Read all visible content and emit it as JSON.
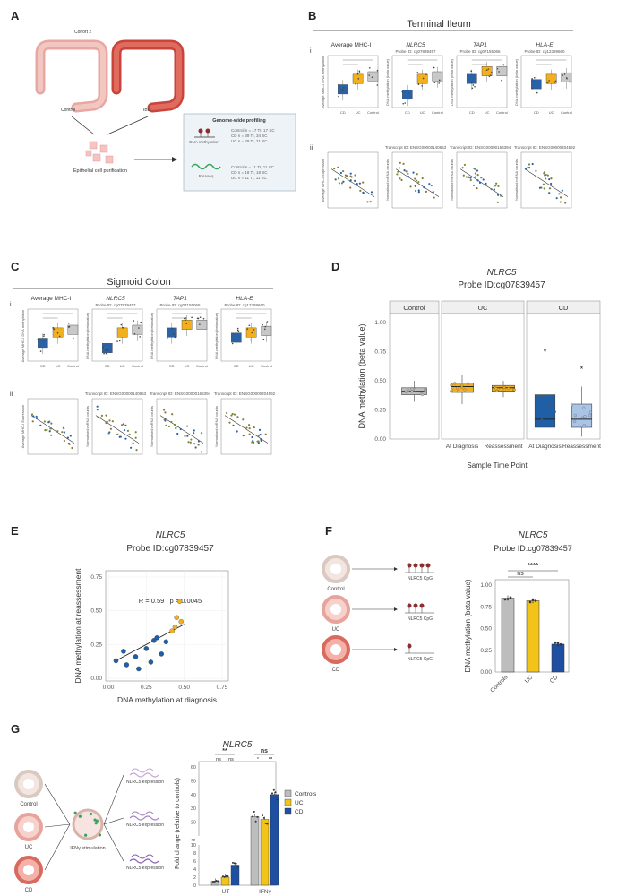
{
  "panels": {
    "A": {
      "label": "A",
      "cohort": "Cohort 2",
      "groups": [
        "Control",
        "IBD"
      ],
      "purification": "Epithelial cell purification",
      "profiling_title": "Genome-wide profiling",
      "methylation_label": "DNA methylation",
      "rnaseq_label": "RNAseq",
      "methylation_counts": [
        "Control n = 17 TI, 17 SC",
        "CD n = 39 TI, 34 SC",
        "UC n = 29 TI, 21 SC"
      ],
      "rnaseq_counts": [
        "Control n = 11 TI, 11 SC",
        "CD n = 18 TI, 18 SC",
        "UC n = 11 TI, 11 SC"
      ]
    },
    "B": {
      "label": "B",
      "title": "Terminal Ileum",
      "row_i": "i",
      "row_ii": "ii",
      "genes": [
        {
          "name": "Average MHC-I",
          "probe": "",
          "transcript": ""
        },
        {
          "name": "NLRC5",
          "probe": "Probe ID: cg07839457",
          "transcript": "Transcript ID: ENSG00000140853"
        },
        {
          "name": "TAP1",
          "probe": "Probe ID: cg07155066",
          "transcript": "Transcript ID: ENSG00000168394"
        },
        {
          "name": "HLA-E",
          "probe": "Probe ID: cg12389660",
          "transcript": "Transcript ID: ENSG00000204592"
        }
      ],
      "ylabels_i": [
        "Average MHC-I DNA methylation",
        "DNA methylation (beta value)",
        "DNA methylation (beta value)",
        "DNA methylation (beta value)"
      ],
      "ylabels_ii": [
        "Average MHC-I Expression",
        "Normalised mRNA counts",
        "Normalised mRNA counts",
        "Normalised mRNA counts"
      ],
      "xcats": [
        "CD",
        "UC",
        "Control"
      ]
    },
    "C": {
      "label": "C",
      "title": "Sigmoid Colon",
      "row_i": "i",
      "row_ii": "ii",
      "genes": [
        {
          "name": "Average MHC-I",
          "probe": "",
          "transcript": ""
        },
        {
          "name": "NLRC5",
          "probe": "Probe ID: cg07839457",
          "transcript": "Transcript ID: ENSG00000140853"
        },
        {
          "name": "TAP1",
          "probe": "Probe ID: cg07155066",
          "transcript": "Transcript ID: ENSG00000168394"
        },
        {
          "name": "HLA-E",
          "probe": "Probe ID: cg12389660",
          "transcript": "Transcript ID: ENSG00000204592"
        }
      ],
      "ylabels_i": [
        "Average MHC-I DNA methylation",
        "DNA methylation (beta value)",
        "DNA methylation (beta value)",
        "DNA methylation (beta value)"
      ],
      "ylabels_ii": [
        "Average MHC-I Expression",
        "Normalised mRNA counts",
        "Normalised mRNA counts",
        "Normalised mRNA counts"
      ],
      "xcats": [
        "CD",
        "UC",
        "Control"
      ]
    },
    "D": {
      "label": "D"
    },
    "E": {
      "label": "E"
    },
    "F": {
      "label": "F",
      "schematic": [
        "Control",
        "UC",
        "CD"
      ],
      "cpg_label": "NLRC5 CpG"
    },
    "G": {
      "label": "G",
      "schematic": [
        "Control",
        "UC",
        "CD"
      ],
      "stimulation": "IFNγ stimulation",
      "expression_label": "NLRC5 expression"
    }
  },
  "chart_data": [
    {
      "id": "D",
      "type": "box",
      "title": "NLRC5",
      "subtitle": "Probe ID:cg07839457",
      "xlabel": "Sample Time Point",
      "ylabel": "DNA methylation (beta value)",
      "ylim": [
        0,
        1.0
      ],
      "yticks": [
        "0.00",
        "0.25",
        "0.50",
        "0.75",
        "1.00"
      ],
      "facets": [
        "Control",
        "UC",
        "CD"
      ],
      "groups": [
        {
          "facet": "Control",
          "label": "",
          "q1": 0.38,
          "median": 0.41,
          "q3": 0.44,
          "min": 0.32,
          "max": 0.5,
          "color": "#bdbdbd"
        },
        {
          "facet": "UC",
          "label": "At Diagnosis",
          "q1": 0.4,
          "median": 0.45,
          "q3": 0.48,
          "min": 0.3,
          "max": 0.55,
          "color": "#f2b01e"
        },
        {
          "facet": "UC",
          "label": "Reassessment",
          "q1": 0.41,
          "median": 0.44,
          "q3": 0.46,
          "min": 0.36,
          "max": 0.5,
          "color": "#f2b01e"
        },
        {
          "facet": "CD",
          "label": "At Diagnosis",
          "q1": 0.1,
          "median": 0.17,
          "q3": 0.38,
          "min": 0.02,
          "max": 0.62,
          "color": "#1f5fa8"
        },
        {
          "facet": "CD",
          "label": "Reassessment",
          "q1": 0.1,
          "median": 0.17,
          "q3": 0.3,
          "min": 0.02,
          "max": 0.45,
          "color": "#a9c4e6"
        }
      ],
      "outliers": [
        {
          "facet": "CD",
          "label": "At Diagnosis",
          "value": 0.75
        },
        {
          "facet": "CD",
          "label": "Reassessment",
          "value": 0.6
        }
      ]
    },
    {
      "id": "E",
      "type": "scatter",
      "title": "NLRC5",
      "subtitle": "Probe ID:cg07839457",
      "xlabel": "DNA methylation at diagnosis",
      "ylabel": "DNA methylation at reassessment",
      "xlim": [
        0,
        0.75
      ],
      "ylim": [
        0,
        0.75
      ],
      "xticks": [
        "0.00",
        "0.25",
        "0.50",
        "0.75"
      ],
      "yticks": [
        "0.00",
        "0.25",
        "0.50",
        "0.75"
      ],
      "annotation": "R = 0.59 , p = 0.0045",
      "points": [
        {
          "x": 0.05,
          "y": 0.13,
          "g": "CD"
        },
        {
          "x": 0.1,
          "y": 0.2,
          "g": "CD"
        },
        {
          "x": 0.12,
          "y": 0.1,
          "g": "CD"
        },
        {
          "x": 0.18,
          "y": 0.16,
          "g": "CD"
        },
        {
          "x": 0.2,
          "y": 0.07,
          "g": "CD"
        },
        {
          "x": 0.25,
          "y": 0.22,
          "g": "CD"
        },
        {
          "x": 0.28,
          "y": 0.12,
          "g": "CD"
        },
        {
          "x": 0.32,
          "y": 0.3,
          "g": "CD"
        },
        {
          "x": 0.35,
          "y": 0.18,
          "g": "CD"
        },
        {
          "x": 0.38,
          "y": 0.27,
          "g": "CD"
        },
        {
          "x": 0.42,
          "y": 0.35,
          "g": "UC"
        },
        {
          "x": 0.45,
          "y": 0.45,
          "g": "UC"
        },
        {
          "x": 0.48,
          "y": 0.42,
          "g": "UC"
        },
        {
          "x": 0.47,
          "y": 0.57,
          "g": "UC"
        },
        {
          "x": 0.44,
          "y": 0.38,
          "g": "UC"
        },
        {
          "x": 0.3,
          "y": 0.28,
          "g": "CD"
        }
      ]
    },
    {
      "id": "F",
      "type": "bar",
      "title": "NLRC5",
      "subtitle": "Probe ID:cg07839457",
      "ylabel": "DNA methylation (beta value)",
      "categories": [
        "Controls",
        "UC",
        "CD"
      ],
      "values": [
        0.85,
        0.82,
        0.32
      ],
      "colors": [
        "#bdbdbd",
        "#f2c318",
        "#1f4fa0"
      ],
      "ylim": [
        0,
        1.0
      ],
      "yticks": [
        "0.00",
        "0.25",
        "0.50",
        "0.75",
        "1.00"
      ],
      "significance": [
        "ns",
        "****"
      ]
    },
    {
      "id": "G",
      "type": "bar",
      "title": "NLRC5",
      "ylabel": "Fold change (relative to controls)",
      "categories": [
        "UT",
        "IFNγ"
      ],
      "series": [
        {
          "name": "Controls",
          "values": [
            1,
            24
          ],
          "color": "#bdbdbd"
        },
        {
          "name": "UC",
          "values": [
            2,
            22
          ],
          "color": "#f2c318"
        },
        {
          "name": "CD",
          "values": [
            5,
            40
          ],
          "color": "#1f4fa0"
        }
      ],
      "yticks": [
        "0",
        "2",
        "4",
        "6",
        "8",
        "10",
        "20",
        "30",
        "40",
        "50",
        "60"
      ],
      "significance": [
        "**",
        "ns",
        "ns",
        "ns",
        "*",
        "**"
      ],
      "legend": [
        "Controls",
        "UC",
        "CD"
      ]
    }
  ]
}
